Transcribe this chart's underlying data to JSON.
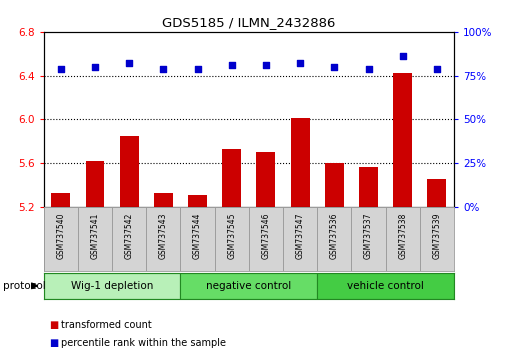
{
  "title": "GDS5185 / ILMN_2432886",
  "samples": [
    "GSM737540",
    "GSM737541",
    "GSM737542",
    "GSM737543",
    "GSM737544",
    "GSM737545",
    "GSM737546",
    "GSM737547",
    "GSM737536",
    "GSM737537",
    "GSM737538",
    "GSM737539"
  ],
  "transformed_counts": [
    5.33,
    5.62,
    5.85,
    5.33,
    5.31,
    5.73,
    5.7,
    6.01,
    5.6,
    5.57,
    6.42,
    5.46
  ],
  "percentile_ranks": [
    79,
    80,
    82,
    79,
    79,
    81,
    81,
    82,
    80,
    79,
    86,
    79
  ],
  "group_labels": [
    "Wig-1 depletion",
    "negative control",
    "vehicle control"
  ],
  "group_ranges": [
    [
      0,
      3
    ],
    [
      4,
      7
    ],
    [
      8,
      11
    ]
  ],
  "group_colors": [
    "#b8f0b8",
    "#66dd66",
    "#44cc44"
  ],
  "ylim_left": [
    5.2,
    6.8
  ],
  "ylim_right": [
    0,
    100
  ],
  "yticks_left": [
    5.2,
    5.6,
    6.0,
    6.4,
    6.8
  ],
  "yticks_right": [
    0,
    25,
    50,
    75,
    100
  ],
  "bar_color": "#cc0000",
  "dot_color": "#0000cc",
  "bar_bottom": 5.2,
  "gridlines": [
    5.6,
    6.0,
    6.4
  ]
}
